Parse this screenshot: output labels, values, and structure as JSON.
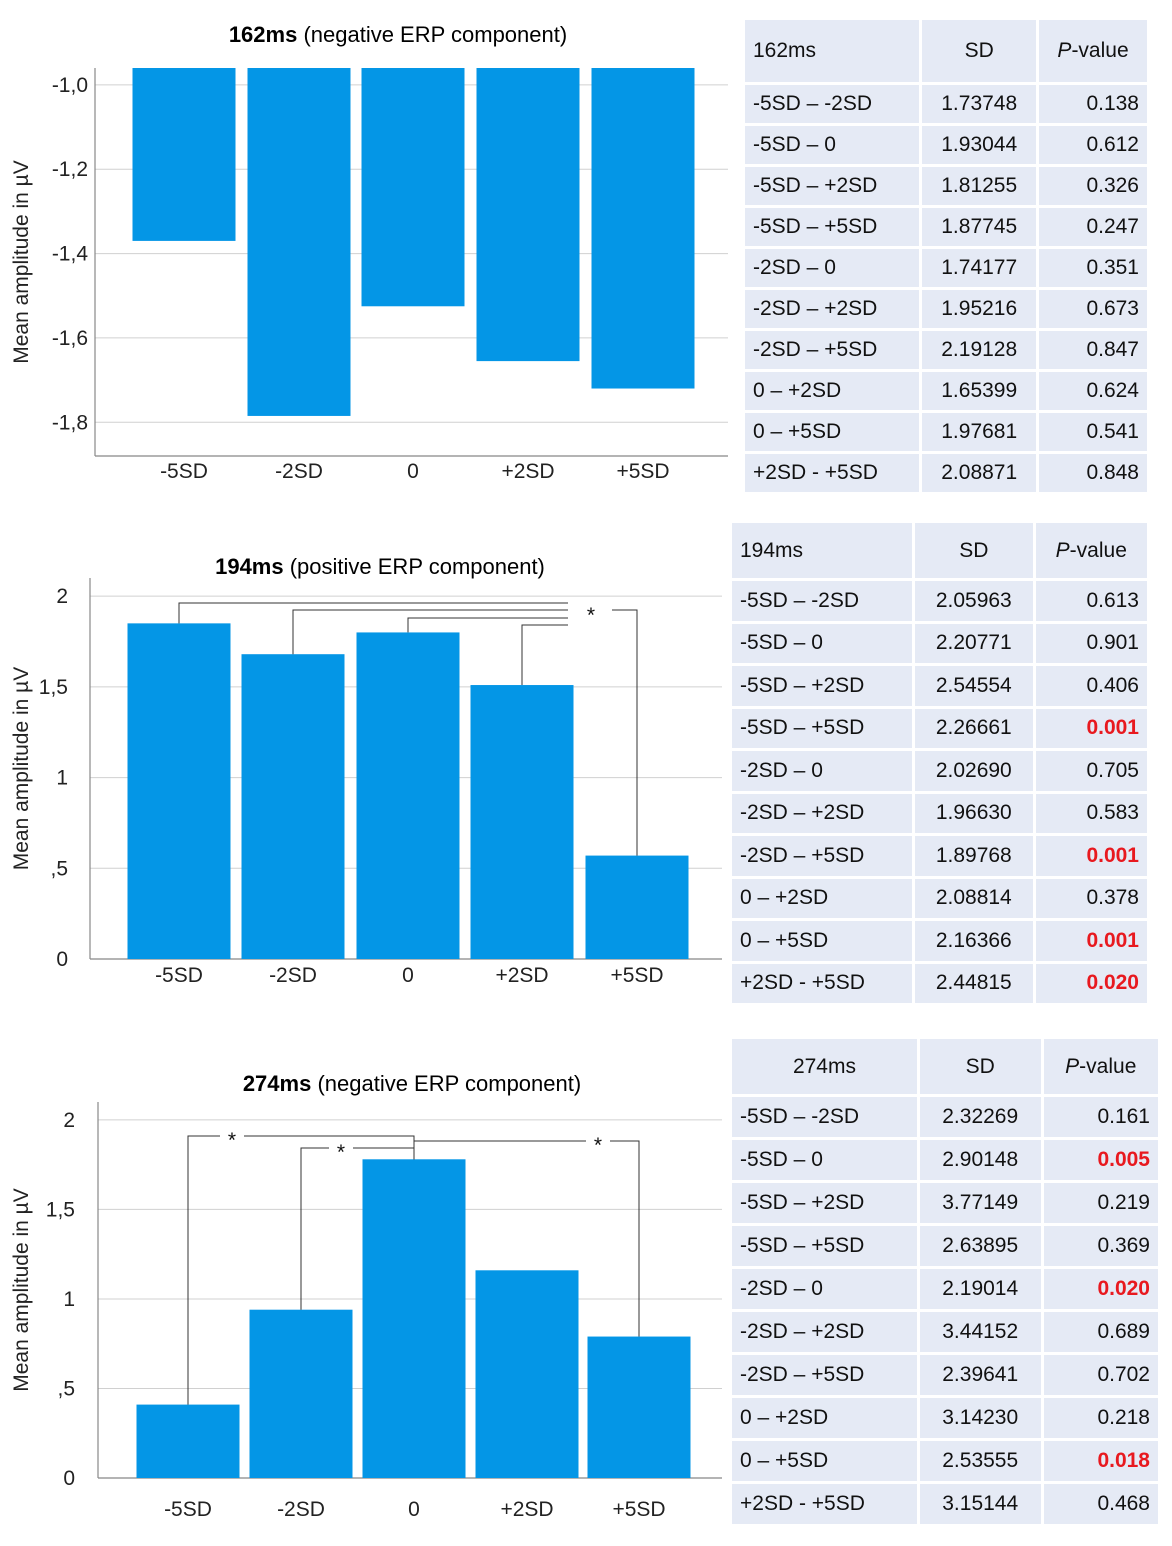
{
  "colors": {
    "bar": "#0496e6",
    "significant": "#e8191f",
    "table_bg": "#e5eaf5",
    "grid": "#d0d0d0"
  },
  "chart_data": [
    {
      "type": "bar",
      "title_bold": "162ms",
      "title_rest": " (negative ERP component)",
      "ylabel": "Mean amplitude in µV",
      "categories": [
        "-5SD",
        "-2SD",
        "0",
        "+2SD",
        "+5SD"
      ],
      "values": [
        -1.37,
        -1.785,
        -1.525,
        -1.655,
        -1.72
      ],
      "baseline": -0.96,
      "ylim": [
        -1.88,
        -0.96
      ],
      "yticks": [
        -1.0,
        -1.2,
        -1.4,
        -1.6,
        -1.8
      ],
      "ytick_labels": [
        "-1,0",
        "-1,2",
        "-1,4",
        "-1,6",
        "-1,8"
      ],
      "significance": []
    },
    {
      "type": "bar",
      "title_bold": "194ms",
      "title_rest": " (positive ERP component)",
      "ylabel": "Mean amplitude in µV",
      "categories": [
        "-5SD",
        "-2SD",
        "0",
        "+2SD",
        "+5SD"
      ],
      "values": [
        1.85,
        1.68,
        1.8,
        1.51,
        0.57
      ],
      "baseline": 0,
      "ylim": [
        0,
        2.1
      ],
      "yticks": [
        0,
        0.5,
        1,
        1.5,
        2
      ],
      "ytick_labels": [
        "0",
        ",5",
        "1",
        "1,5",
        "2"
      ],
      "significance": [
        {
          "from": 0,
          "to": 4,
          "label": "*"
        },
        {
          "from": 1,
          "to": 4,
          "label": ""
        },
        {
          "from": 2,
          "to": 4,
          "label": ""
        },
        {
          "from": 3,
          "to": 4,
          "label": ""
        }
      ]
    },
    {
      "type": "bar",
      "title_bold": "274ms",
      "title_rest": " (negative ERP component)",
      "ylabel": "Mean amplitude in µV",
      "categories": [
        "-5SD",
        "-2SD",
        "0",
        "+2SD",
        "+5SD"
      ],
      "values": [
        0.41,
        0.94,
        1.78,
        1.16,
        0.79
      ],
      "baseline": 0,
      "ylim": [
        0,
        2.1
      ],
      "yticks": [
        0,
        0.5,
        1,
        1.5,
        2
      ],
      "ytick_labels": [
        "0",
        ",5",
        "1",
        "1,5",
        "2"
      ],
      "significance": [
        {
          "from": 0,
          "to": 2,
          "label": "*"
        },
        {
          "from": 1,
          "to": 2,
          "label": "*"
        },
        {
          "from": 2,
          "to": 4,
          "label": "*"
        }
      ]
    }
  ],
  "tables": [
    {
      "header": [
        "162ms",
        "SD",
        "-value"
      ],
      "pvalue_prefix": "P",
      "rows": [
        {
          "pair": "-5SD – -2SD",
          "sd": "1.73748",
          "p": "0.138",
          "sig": false
        },
        {
          "pair": "-5SD – 0",
          "sd": "1.93044",
          "p": "0.612",
          "sig": false
        },
        {
          "pair": "-5SD – +2SD",
          "sd": "1.81255",
          "p": "0.326",
          "sig": false
        },
        {
          "pair": "-5SD – +5SD",
          "sd": "1.87745",
          "p": "0.247",
          "sig": false
        },
        {
          "pair": "-2SD – 0",
          "sd": "1.74177",
          "p": "0.351",
          "sig": false
        },
        {
          "pair": "-2SD – +2SD",
          "sd": "1.95216",
          "p": "0.673",
          "sig": false
        },
        {
          "pair": "-2SD – +5SD",
          "sd": "2.19128",
          "p": "0.847",
          "sig": false
        },
        {
          "pair": "0 – +2SD",
          "sd": "1.65399",
          "p": "0.624",
          "sig": false
        },
        {
          "pair": "0 – +5SD",
          "sd": "1.97681",
          "p": "0.541",
          "sig": false
        },
        {
          "pair": "+2SD - +5SD",
          "sd": "2.08871",
          "p": "0.848",
          "sig": false
        }
      ]
    },
    {
      "header": [
        "194ms",
        "SD",
        "-value"
      ],
      "pvalue_prefix": "P",
      "rows": [
        {
          "pair": "-5SD – -2SD",
          "sd": "2.05963",
          "p": "0.613",
          "sig": false
        },
        {
          "pair": "-5SD – 0",
          "sd": "2.20771",
          "p": "0.901",
          "sig": false
        },
        {
          "pair": "-5SD – +2SD",
          "sd": "2.54554",
          "p": "0.406",
          "sig": false
        },
        {
          "pair": "-5SD – +5SD",
          "sd": "2.26661",
          "p": "0.001",
          "sig": true
        },
        {
          "pair": "-2SD – 0",
          "sd": "2.02690",
          "p": "0.705",
          "sig": false
        },
        {
          "pair": "-2SD – +2SD",
          "sd": "1.96630",
          "p": "0.583",
          "sig": false
        },
        {
          "pair": "-2SD – +5SD",
          "sd": "1.89768",
          "p": "0.001",
          "sig": true
        },
        {
          "pair": "0 – +2SD",
          "sd": "2.08814",
          "p": "0.378",
          "sig": false
        },
        {
          "pair": "0 – +5SD",
          "sd": "2.16366",
          "p": "0.001",
          "sig": true
        },
        {
          "pair": "+2SD - +5SD",
          "sd": "2.44815",
          "p": "0.020",
          "sig": true
        }
      ]
    },
    {
      "header": [
        "274ms",
        "SD",
        "-value"
      ],
      "pvalue_prefix": "P",
      "rows": [
        {
          "pair": "-5SD – -2SD",
          "sd": "2.32269",
          "p": "0.161",
          "sig": false
        },
        {
          "pair": "-5SD – 0",
          "sd": "2.90148",
          "p": "0.005",
          "sig": true
        },
        {
          "pair": "-5SD – +2SD",
          "sd": "3.77149",
          "p": "0.219",
          "sig": false
        },
        {
          "pair": "-5SD – +5SD",
          "sd": "2.63895",
          "p": "0.369",
          "sig": false
        },
        {
          "pair": "-2SD – 0",
          "sd": "2.19014",
          "p": "0.020",
          "sig": true
        },
        {
          "pair": "-2SD – +2SD",
          "sd": "3.44152",
          "p": "0.689",
          "sig": false
        },
        {
          "pair": "-2SD – +5SD",
          "sd": "2.39641",
          "p": "0.702",
          "sig": false
        },
        {
          "pair": "0 – +2SD",
          "sd": "3.14230",
          "p": "0.218",
          "sig": false
        },
        {
          "pair": "0 – +5SD",
          "sd": "2.53555",
          "p": "0.018",
          "sig": true
        },
        {
          "pair": "+2SD - +5SD",
          "sd": "3.15144",
          "p": "0.468",
          "sig": false
        }
      ]
    }
  ]
}
